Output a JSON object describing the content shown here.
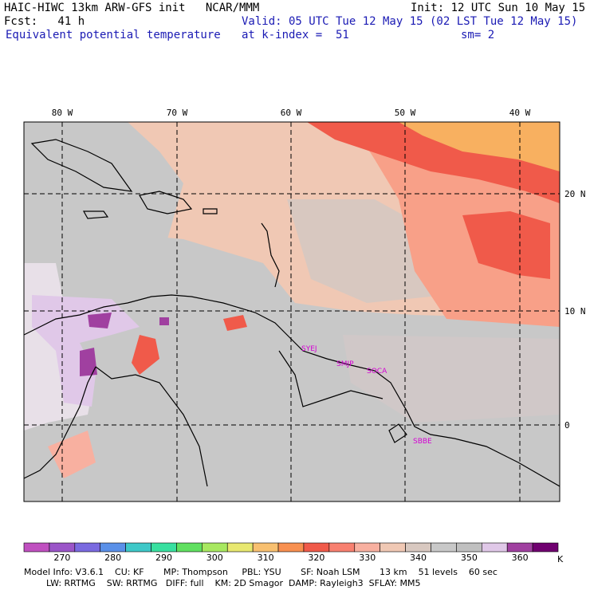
{
  "header": {
    "title": "HAIC-HIWC 13km ARW-GFS init   NCAR/MMM",
    "init": "Init: 12 UTC Sun 10 May 15",
    "fcst": "Fcst:   41 h",
    "valid": "Valid: 05 UTC Tue 12 May 15 (02 LST Tue 12 May 15)",
    "field": "Equivalent potential temperature",
    "level": "at k-index =  51",
    "smooth": "sm= 2"
  },
  "map": {
    "lon_labels": [
      "80 W",
      "70 W",
      "60 W",
      "50 W",
      "40 W"
    ],
    "lat_labels": [
      "20 N",
      "10 N",
      "0"
    ],
    "station_labels": [
      "SYEJ",
      "SMJP",
      "SOCA",
      "SBBE"
    ],
    "colors": {
      "land_gray": "#c0c0c0",
      "sea_peach": "#f0c8b4",
      "salmon": "#f8a088",
      "red": "#f05a4a",
      "orange": "#f8b060",
      "light_lavender": "#e0c8e8",
      "purple": "#a040a0",
      "outline": "#000000"
    }
  },
  "colorbar": {
    "ticks": [
      "270",
      "280",
      "290",
      "300",
      "310",
      "320",
      "330",
      "340",
      "350",
      "360"
    ],
    "unit": "K",
    "colors": [
      "#c050c0",
      "#9b55c8",
      "#7a6ae0",
      "#5a90e8",
      "#3ec8c8",
      "#38e0a0",
      "#60e060",
      "#a8e860",
      "#e8e870",
      "#f8c070",
      "#f89050",
      "#f05a4a",
      "#f88070",
      "#f8b0a0",
      "#f0c8b4",
      "#d8c8c0",
      "#c8c8c8",
      "#c0c0c0",
      "#e0c8e8",
      "#a040a0",
      "#700070"
    ]
  },
  "model_info": {
    "line1": "Model Info: V3.6.1    CU: KF       MP: Thompson     PBL: YSU       SF: Noah LSM       13 km    51 levels    60 sec",
    "line2": "        LW: RRTMG    SW: RRTMG   DIFF: full    KM: 2D Smagor  DAMP: Rayleigh3  SFLAY: MM5"
  }
}
